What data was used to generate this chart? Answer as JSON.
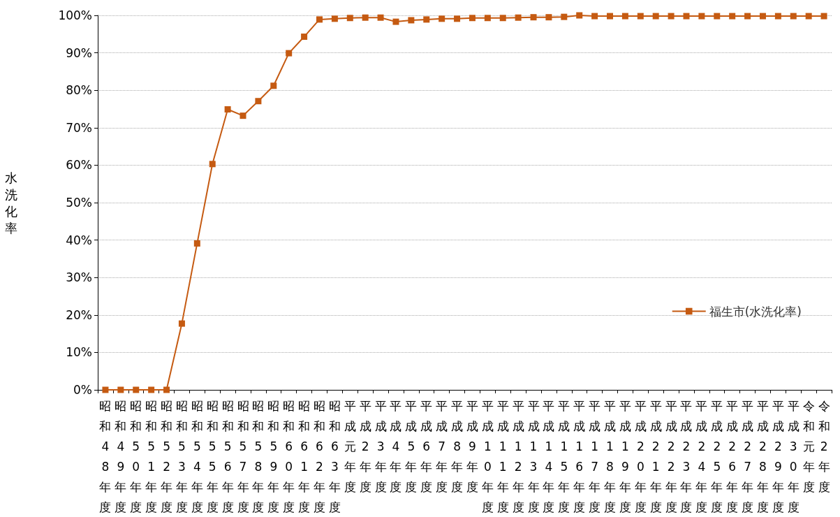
{
  "chart_data": {
    "type": "line",
    "ylabel": "水洗化率",
    "categories": [
      "昭和48年度",
      "昭和49年度",
      "昭和50年度",
      "昭和51年度",
      "昭和52年度",
      "昭和53年度",
      "昭和54年度",
      "昭和55年度",
      "昭和56年度",
      "昭和57年度",
      "昭和58年度",
      "昭和59年度",
      "昭和60年度",
      "昭和61年度",
      "昭和62年度",
      "昭和63年度",
      "平成元年度",
      "平成2年度",
      "平成3年度",
      "平成4年度",
      "平成5年度",
      "平成6年度",
      "平成7年度",
      "平成8年度",
      "平成9年度",
      "平成10年度",
      "平成11年度",
      "平成12年度",
      "平成13年度",
      "平成14年度",
      "平成15年度",
      "平成16年度",
      "平成17年度",
      "平成18年度",
      "平成19年度",
      "平成20年度",
      "平成21年度",
      "平成22年度",
      "平成23年度",
      "平成24年度",
      "平成25年度",
      "平成26年度",
      "平成27年度",
      "平成28年度",
      "平成29年度",
      "平成30年度",
      "令和元年度",
      "令和2年度"
    ],
    "series": [
      {
        "name": "福生市(水洗化率)",
        "color": "#c55a11",
        "values": [
          0,
          0,
          0,
          0,
          0,
          17.7,
          39.1,
          60.3,
          74.9,
          73.2,
          77.1,
          81.2,
          89.9,
          94.3,
          98.9,
          99.1,
          99.3,
          99.4,
          99.4,
          98.3,
          98.7,
          98.9,
          99.1,
          99.1,
          99.3,
          99.3,
          99.3,
          99.4,
          99.5,
          99.5,
          99.6,
          100,
          99.8,
          99.8,
          99.8,
          99.8,
          99.8,
          99.8,
          99.8,
          99.8,
          99.8,
          99.8,
          99.8,
          99.8,
          99.8,
          99.8,
          99.8,
          99.8
        ]
      }
    ],
    "ylim": [
      0,
      100
    ],
    "yticks": [
      {
        "value": 0,
        "label": "0%"
      },
      {
        "value": 10,
        "label": "10%"
      },
      {
        "value": 20,
        "label": "20%"
      },
      {
        "value": 30,
        "label": "30%"
      },
      {
        "value": 40,
        "label": "40%"
      },
      {
        "value": 50,
        "label": "50%"
      },
      {
        "value": 60,
        "label": "60%"
      },
      {
        "value": 70,
        "label": "70%"
      },
      {
        "value": 80,
        "label": "80%"
      },
      {
        "value": 90,
        "label": "90%"
      },
      {
        "value": 100,
        "label": "100%"
      }
    ],
    "grid": "y",
    "legend": "right",
    "marker": "square",
    "line_style": "solid"
  }
}
